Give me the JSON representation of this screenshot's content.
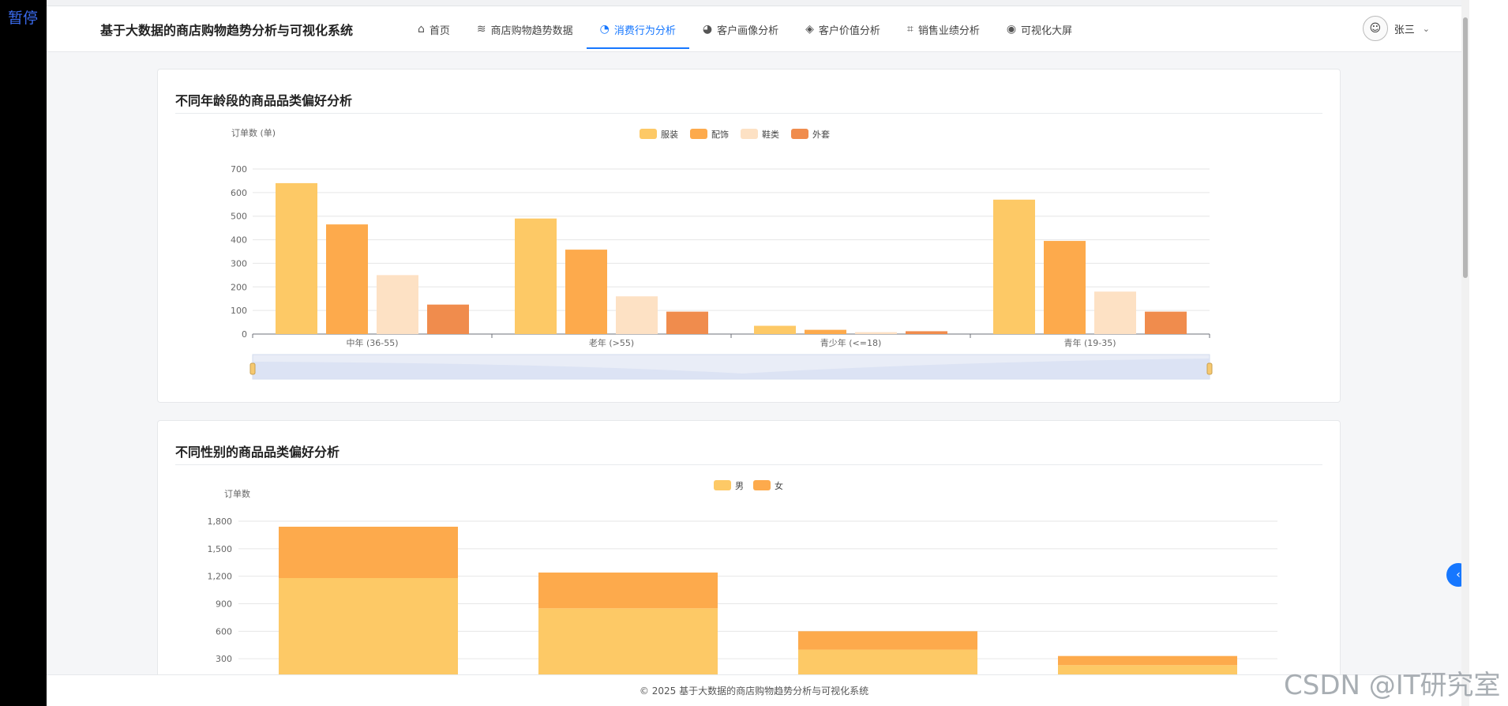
{
  "overlay": {
    "pause_label": "暂停"
  },
  "app": {
    "title": "基于大数据的商店购物趋势分析与可视化系统"
  },
  "nav": {
    "items": [
      {
        "label": "首页",
        "icon": "home-icon",
        "glyph": "⌂"
      },
      {
        "label": "商店购物趋势数据",
        "icon": "database-icon",
        "glyph": "≋"
      },
      {
        "label": "消费行为分析",
        "icon": "pie-chart-icon",
        "glyph": "◔",
        "active": true
      },
      {
        "label": "客户画像分析",
        "icon": "user-icon",
        "glyph": "◕"
      },
      {
        "label": "客户价值分析",
        "icon": "diamond-icon",
        "glyph": "◈"
      },
      {
        "label": "销售业绩分析",
        "icon": "line-chart-icon",
        "glyph": "⌗"
      },
      {
        "label": "可视化大屏",
        "icon": "dashboard-icon",
        "glyph": "◉"
      }
    ]
  },
  "user": {
    "name": "张三"
  },
  "cards": [
    {
      "title": "不同年龄段的商品品类偏好分析"
    },
    {
      "title": "不同性别的商品品类偏好分析"
    }
  ],
  "chart_data": [
    {
      "type": "bar",
      "ylabel": "订单数 (单)",
      "categories": [
        "中年 (36-55)",
        "老年 (>55)",
        "青少年 (<=18)",
        "青年 (19-35)"
      ],
      "series": [
        {
          "name": "服装",
          "color": "#fdc966",
          "values": [
            640,
            490,
            35,
            570
          ]
        },
        {
          "name": "配饰",
          "color": "#fdaa4c",
          "values": [
            465,
            358,
            18,
            395
          ]
        },
        {
          "name": "鞋类",
          "color": "#fde1c4",
          "values": [
            250,
            160,
            8,
            180
          ]
        },
        {
          "name": "外套",
          "color": "#f08c4d",
          "values": [
            125,
            95,
            12,
            95
          ]
        }
      ],
      "ylim": [
        0,
        700
      ],
      "yticks": [
        0,
        100,
        200,
        300,
        400,
        500,
        600,
        700
      ],
      "grid": true,
      "legend": "top-center",
      "datazoom": true
    },
    {
      "type": "bar",
      "stacked": true,
      "ylabel": "订单数",
      "categories": [
        "",
        "",
        "",
        ""
      ],
      "series": [
        {
          "name": "男",
          "color": "#fdc966",
          "values": [
            1180,
            850,
            400,
            230
          ]
        },
        {
          "name": "女",
          "color": "#fdaa4c",
          "values": [
            560,
            390,
            200,
            100
          ]
        }
      ],
      "ylim": [
        0,
        1800
      ],
      "yticks": [
        "300",
        "600",
        "900",
        "1,200",
        "1,500",
        "1,800"
      ],
      "grid": true,
      "legend": "top-center"
    }
  ],
  "footer": {
    "text": "© 2025 基于大数据的商店购物趋势分析与可视化系统"
  },
  "watermark": {
    "text": "CSDN @IT研究室"
  }
}
